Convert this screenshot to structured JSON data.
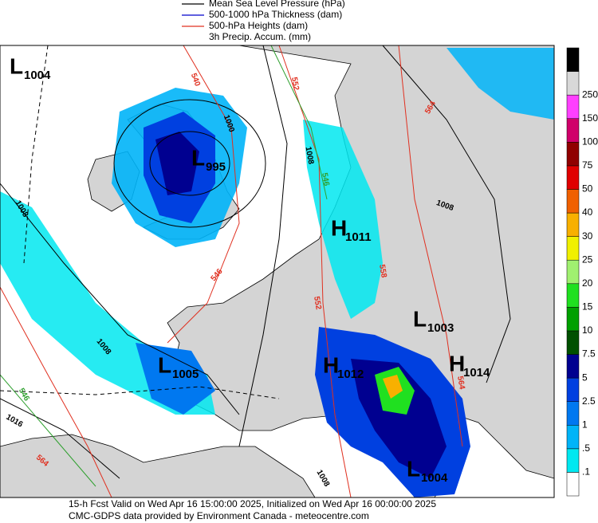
{
  "legend": [
    "Mean Sea Level Pressure (hPa)",
    "500-1000 hPa Thickness (dam)",
    "500-hPa Heights (dam)",
    "3h Precip. Accum. (mm)"
  ],
  "legend_colors": [
    "#000000",
    "#0000cc",
    "#e03020",
    "#ffffff"
  ],
  "centers": [
    {
      "letter": "L",
      "value": "1004"
    },
    {
      "letter": "L",
      "value": "995"
    },
    {
      "letter": "H",
      "value": "1011"
    },
    {
      "letter": "L",
      "value": "1003"
    },
    {
      "letter": "L",
      "value": "1005"
    },
    {
      "letter": "H",
      "value": "1012"
    },
    {
      "letter": "H",
      "value": "1014"
    },
    {
      "letter": "L",
      "value": "1004"
    }
  ],
  "contour_labels": [
    {
      "text": "1000",
      "color": "#000000"
    },
    {
      "text": "1008",
      "color": "#000000"
    },
    {
      "text": "1008",
      "color": "#000000"
    },
    {
      "text": "1008",
      "color": "#000000"
    },
    {
      "text": "1008",
      "color": "#000000"
    },
    {
      "text": "1016",
      "color": "#000000"
    },
    {
      "text": "1008",
      "color": "#000000"
    },
    {
      "text": "552",
      "color": "#e03020"
    },
    {
      "text": "552",
      "color": "#e03020"
    },
    {
      "text": "564",
      "color": "#e03020"
    },
    {
      "text": "564",
      "color": "#e03020"
    },
    {
      "text": "546",
      "color": "#e03020"
    },
    {
      "text": "540",
      "color": "#e03020"
    },
    {
      "text": "546",
      "color": "#30a030"
    },
    {
      "text": "546",
      "color": "#30a030"
    },
    {
      "text": "564",
      "color": "#e03020"
    },
    {
      "text": "558",
      "color": "#e03020"
    }
  ],
  "scale": {
    "labels": [
      ".1",
      ".5",
      "1",
      "2.5",
      "5",
      "7.5",
      "10",
      "15",
      "20",
      "25",
      "30",
      "40",
      "50",
      "75",
      "100",
      "150",
      "250"
    ],
    "colors": [
      "#ffffff",
      "#00e8f0",
      "#00b4f8",
      "#0078f0",
      "#0040e0",
      "#000090",
      "#005000",
      "#00a000",
      "#20e020",
      "#a0f070",
      "#f0f000",
      "#f8b000",
      "#f06000",
      "#e00000",
      "#900000",
      "#d0006a",
      "#ff40ff",
      "#d8d8d8",
      "#000000"
    ]
  },
  "footer": [
    "15-h Fcst Valid on Wed Apr 16 15:00:00 2025, Initialized on Wed Apr 16 00:00:00 2025",
    "CMC-GDPS data provided by Environment Canada - meteocentre.com"
  ]
}
